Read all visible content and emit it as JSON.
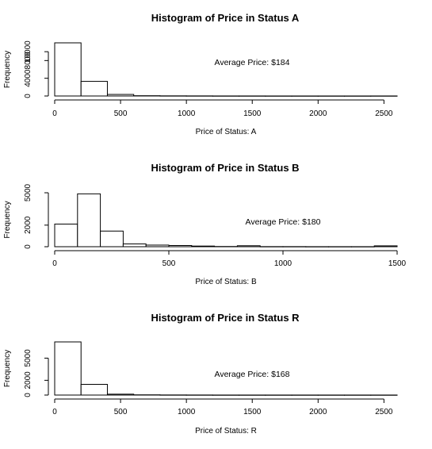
{
  "chart_data": [
    {
      "type": "bar",
      "title": "Histogram of Price in Status A",
      "xlabel": "Price of Status: A",
      "ylabel": "Frequency",
      "annotation": "Average Price: $184",
      "bins": [
        [
          0,
          200
        ],
        [
          200,
          400
        ],
        [
          400,
          600
        ],
        [
          600,
          800
        ],
        [
          800,
          1000
        ],
        [
          1000,
          1200
        ],
        [
          1200,
          1400
        ],
        [
          1400,
          1600
        ],
        [
          1600,
          1800
        ],
        [
          1800,
          2000
        ],
        [
          2000,
          2200
        ],
        [
          2200,
          2400
        ],
        [
          2400,
          2600
        ]
      ],
      "values": [
        12000,
        3300,
        350,
        60,
        30,
        20,
        10,
        10,
        5,
        5,
        5,
        5,
        10
      ],
      "xlim": [
        0,
        2600
      ],
      "ylim": [
        0,
        12000
      ],
      "xticks": [
        0,
        500,
        1000,
        1500,
        2000,
        2500
      ],
      "yticks": [
        0,
        4000,
        8000,
        10000
      ],
      "grid": false
    },
    {
      "type": "bar",
      "title": "Histogram of Price in Status B",
      "xlabel": "Price of Status: B",
      "ylabel": "Frequency",
      "annotation": "Average Price: $180",
      "bins": [
        [
          0,
          100
        ],
        [
          100,
          200
        ],
        [
          200,
          300
        ],
        [
          300,
          400
        ],
        [
          400,
          500
        ],
        [
          500,
          600
        ],
        [
          600,
          700
        ],
        [
          700,
          800
        ],
        [
          800,
          900
        ],
        [
          900,
          1000
        ],
        [
          1000,
          1100
        ],
        [
          1100,
          1200
        ],
        [
          1200,
          1300
        ],
        [
          1300,
          1400
        ],
        [
          1400,
          1500
        ]
      ],
      "values": [
        2100,
        4900,
        1450,
        260,
        150,
        110,
        60,
        20,
        90,
        10,
        10,
        5,
        5,
        5,
        80
      ],
      "xlim": [
        0,
        1500
      ],
      "ylim": [
        0,
        5000
      ],
      "xticks": [
        0,
        500,
        1000,
        1500
      ],
      "yticks": [
        0,
        2000,
        5000
      ],
      "grid": false
    },
    {
      "type": "bar",
      "title": "Histogram of Price in Status R",
      "xlabel": "Price of Status: R",
      "ylabel": "Frequency",
      "annotation": "Average Price: $168",
      "bins": [
        [
          0,
          200
        ],
        [
          200,
          400
        ],
        [
          400,
          600
        ],
        [
          600,
          800
        ],
        [
          800,
          1000
        ],
        [
          1000,
          1200
        ],
        [
          1200,
          1400
        ],
        [
          1400,
          1600
        ],
        [
          1600,
          1800
        ],
        [
          1800,
          2000
        ],
        [
          2000,
          2200
        ],
        [
          2200,
          2400
        ],
        [
          2400,
          2600
        ]
      ],
      "values": [
        7200,
        1450,
        120,
        30,
        15,
        10,
        5,
        5,
        5,
        5,
        5,
        5,
        5
      ],
      "xlim": [
        0,
        2600
      ],
      "ylim": [
        0,
        7200
      ],
      "xticks": [
        0,
        500,
        1000,
        1500,
        2000,
        2500
      ],
      "yticks": [
        0,
        2000,
        5000
      ],
      "grid": false
    }
  ]
}
